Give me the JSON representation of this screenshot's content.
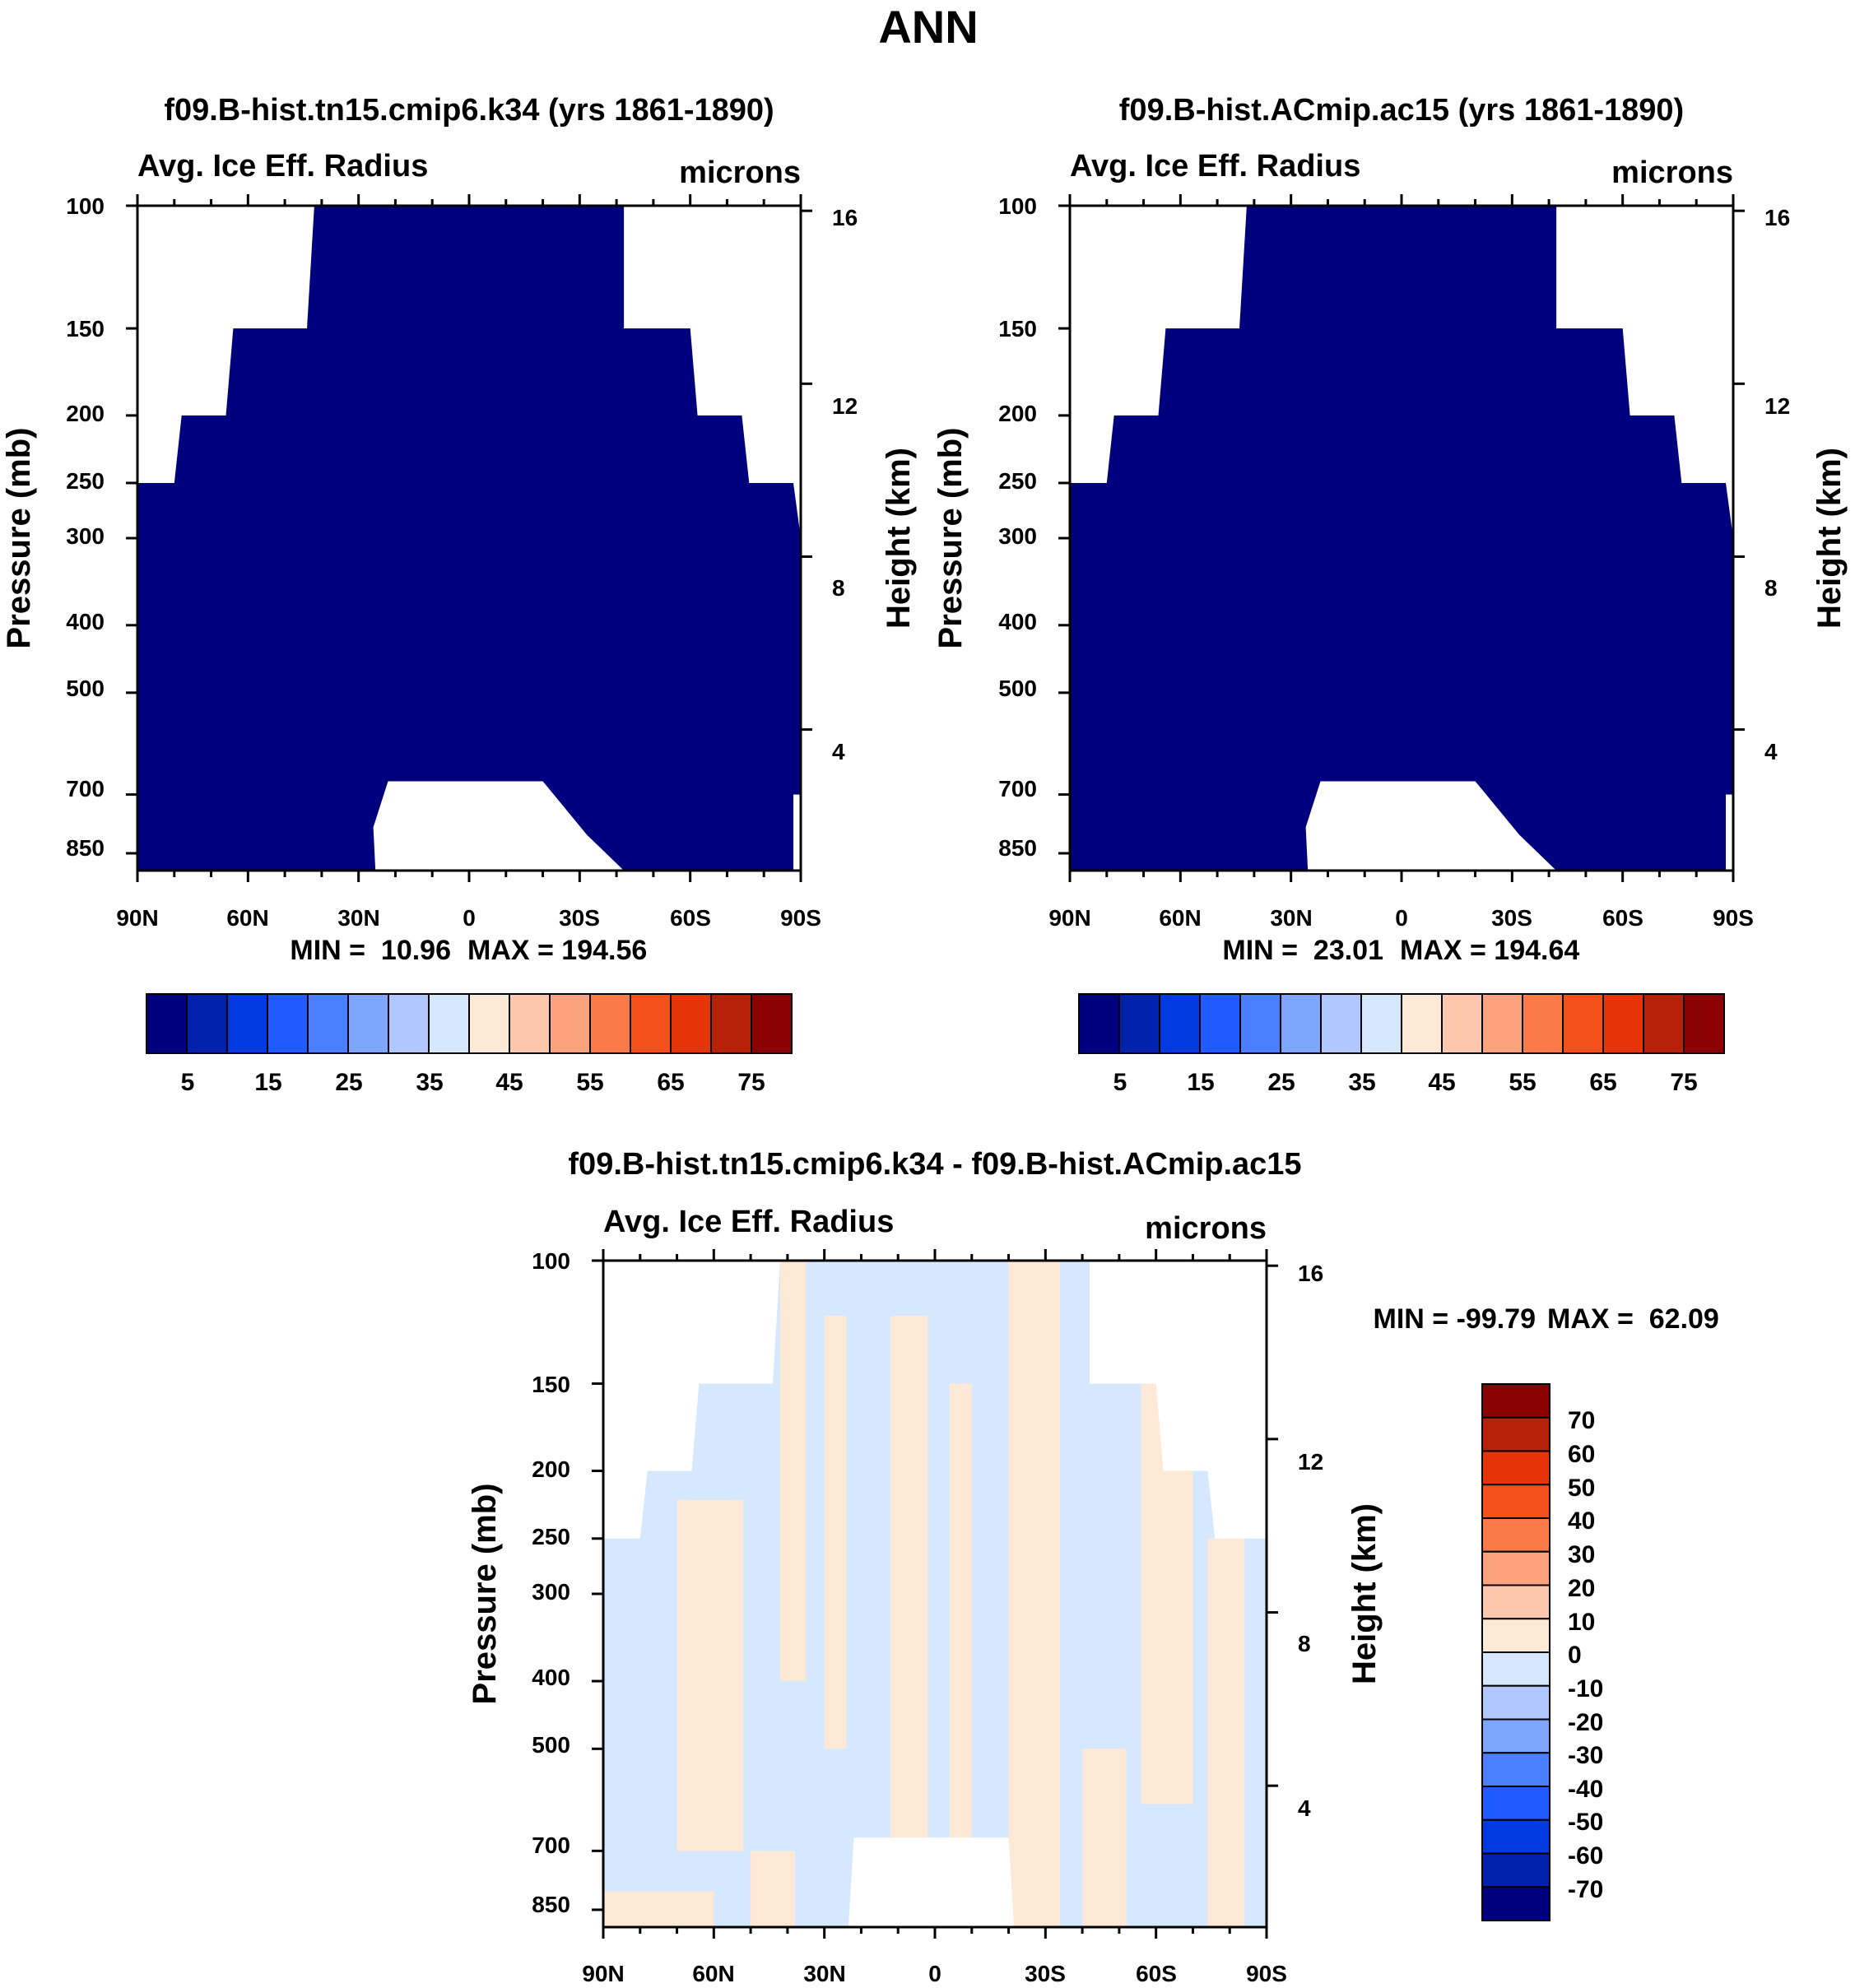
{
  "figure_title": "ANN",
  "chart_data": [
    {
      "type": "heatmap",
      "id": "left",
      "title": "f09.B-hist.tn15.cmip6.k34 (yrs 1861-1890)",
      "variable": "Avg. Ice Eff. Radius",
      "units": "microns",
      "ylabel": "Pressure (mb)",
      "ylabel_right": "Height (km)",
      "x_ticks": [
        "90N",
        "60N",
        "30N",
        "0",
        "30S",
        "60S",
        "90S"
      ],
      "y_ticks": [
        "100",
        "150",
        "200",
        "250",
        "300",
        "400",
        "500",
        "700",
        "850"
      ],
      "y2_ticks": [
        "16",
        "12",
        "8",
        "4"
      ],
      "min_label": "MIN =  10.96",
      "max_label": "MAX = 194.56",
      "colorbar_labels": [
        "5",
        "15",
        "25",
        "35",
        "45",
        "55",
        "65",
        "75"
      ],
      "ylim": [
        1000,
        100
      ],
      "xlim": [
        90,
        -90
      ]
    },
    {
      "type": "heatmap",
      "id": "right",
      "title": "f09.B-hist.ACmip.ac15 (yrs 1861-1890)",
      "variable": "Avg. Ice Eff. Radius",
      "units": "microns",
      "ylabel": "Pressure (mb)",
      "ylabel_right": "Height (km)",
      "x_ticks": [
        "90N",
        "60N",
        "30N",
        "0",
        "30S",
        "60S",
        "90S"
      ],
      "y_ticks": [
        "100",
        "150",
        "200",
        "250",
        "300",
        "400",
        "500",
        "700",
        "850"
      ],
      "y2_ticks": [
        "16",
        "12",
        "8",
        "4"
      ],
      "min_label": "MIN =  23.01",
      "max_label": "MAX = 194.64",
      "colorbar_labels": [
        "5",
        "15",
        "25",
        "35",
        "45",
        "55",
        "65",
        "75"
      ],
      "ylim": [
        1000,
        100
      ],
      "xlim": [
        90,
        -90
      ]
    },
    {
      "type": "heatmap",
      "id": "diff",
      "title": "f09.B-hist.tn15.cmip6.k34 - f09.B-hist.ACmip.ac15",
      "variable": "Avg. Ice Eff. Radius",
      "units": "microns",
      "ylabel": "Pressure (mb)",
      "ylabel_right": "Height (km)",
      "x_ticks": [
        "90N",
        "60N",
        "30N",
        "0",
        "30S",
        "60S",
        "90S"
      ],
      "y_ticks": [
        "100",
        "150",
        "200",
        "250",
        "300",
        "400",
        "500",
        "700",
        "850"
      ],
      "y2_ticks": [
        "16",
        "12",
        "8",
        "4"
      ],
      "min_label": "MIN = -99.79",
      "max_label": "MAX =  62.09",
      "colorbar_labels": [
        "70",
        "60",
        "50",
        "40",
        "30",
        "20",
        "10",
        "0",
        "-10",
        "-20",
        "-30",
        "-40",
        "-50",
        "-60",
        "-70"
      ],
      "ylim": [
        1000,
        100
      ],
      "xlim": [
        90,
        -90
      ]
    }
  ],
  "colors": {
    "level_colors": [
      "#00007f",
      "#0021ab",
      "#003ae0",
      "#1f5bff",
      "#4a80ff",
      "#7fa6ff",
      "#b0c8ff",
      "#d6e8ff",
      "#fde9d5",
      "#fcc7ac",
      "#fca27c",
      "#fb7a47",
      "#f4501c",
      "#e43408",
      "#b72108",
      "#8b0000"
    ],
    "diff_positive": "#fde9d5",
    "diff_negative": "#d6e8ff"
  }
}
